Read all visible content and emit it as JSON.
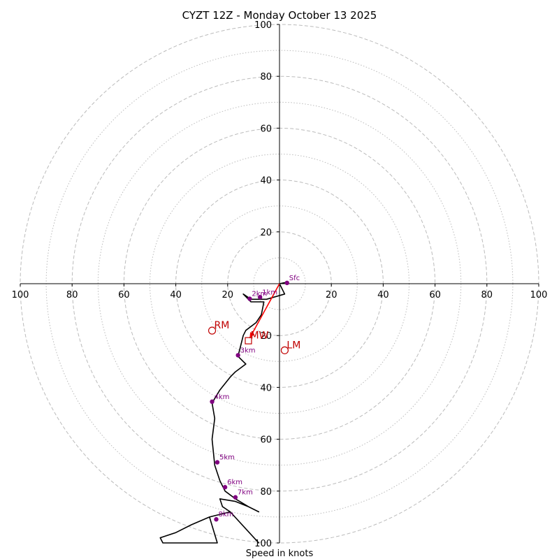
{
  "chart_data": {
    "type": "hodograph",
    "title": "CYZT 12Z - Monday October 13 2025",
    "xlabel": "Speed in knots",
    "range": [
      -100,
      100
    ],
    "rings_major": [
      20,
      40,
      60,
      80,
      100
    ],
    "rings_minor": [
      10,
      30,
      50,
      70,
      90
    ],
    "x_ticks": [
      "100",
      "80",
      "60",
      "40",
      "20",
      "20",
      "40",
      "60",
      "80",
      "100"
    ],
    "y_ticks": [
      "20",
      "40",
      "60",
      "80",
      "100"
    ],
    "colors": {
      "grid": "#bbbbbb",
      "trace": "#000000",
      "height_marker": "#800080",
      "motion": "#c00000",
      "mean_wind_arrow": "#ff0000"
    },
    "trace": [
      [
        2.5,
        0.5
      ],
      [
        0,
        0
      ],
      [
        2,
        -4
      ],
      [
        -5,
        -6
      ],
      [
        -7,
        -6
      ],
      [
        -11,
        -6
      ],
      [
        -14,
        -4
      ],
      [
        -11,
        -7
      ],
      [
        -6,
        -7
      ],
      [
        -7,
        -12
      ],
      [
        -9,
        -15
      ],
      [
        -13,
        -18
      ],
      [
        -14,
        -20
      ],
      [
        -15,
        -24
      ],
      [
        -16,
        -28
      ],
      [
        -13,
        -31
      ],
      [
        -17,
        -34
      ],
      [
        -19,
        -36
      ],
      [
        -23,
        -41
      ],
      [
        -26,
        -46
      ],
      [
        -25,
        -52
      ],
      [
        -26,
        -60
      ],
      [
        -25,
        -70
      ],
      [
        -23,
        -76
      ],
      [
        -21,
        -80
      ],
      [
        -17,
        -83
      ],
      [
        -12,
        -86
      ],
      [
        -8,
        -88
      ],
      [
        -12,
        -86
      ],
      [
        -17,
        -84
      ],
      [
        -23,
        -83
      ],
      [
        -22,
        -86
      ],
      [
        -19,
        -88
      ],
      [
        -8,
        -100
      ],
      [
        -19,
        -88
      ],
      [
        -27,
        -90
      ],
      [
        -34,
        -93
      ],
      [
        -40,
        -96
      ],
      [
        -46,
        -98
      ],
      [
        -45,
        -100
      ],
      [
        -24,
        -100
      ],
      [
        -27,
        -90
      ]
    ],
    "height_markers": [
      {
        "label": "Sfc",
        "u": 2.9,
        "v": 0.3
      },
      {
        "label": "1km",
        "u": -7.5,
        "v": -5.2
      },
      {
        "label": "2km",
        "u": -11.5,
        "v": -5.8
      },
      {
        "label": "3km",
        "u": -16.0,
        "v": -27.6
      },
      {
        "label": "4km",
        "u": -26.0,
        "v": -45.5
      },
      {
        "label": "5km",
        "u": -24.0,
        "v": -68.9
      },
      {
        "label": "6km",
        "u": -21.0,
        "v": -78.5
      },
      {
        "label": "7km",
        "u": -17.0,
        "v": -82.4
      },
      {
        "label": "8km",
        "u": -24.4,
        "v": -90.9
      }
    ],
    "storm_motion": [
      {
        "label": "RM",
        "u": -26.0,
        "v": -18.1,
        "symbol": "circle"
      },
      {
        "label": "LM",
        "u": 2.0,
        "v": -25.7,
        "symbol": "circle"
      },
      {
        "label": "MW",
        "u": -12.0,
        "v": -22.0,
        "symbol": "square"
      }
    ],
    "mean_wind_vector": {
      "from": [
        0,
        0
      ],
      "to": [
        -11.5,
        -21.0
      ]
    }
  }
}
